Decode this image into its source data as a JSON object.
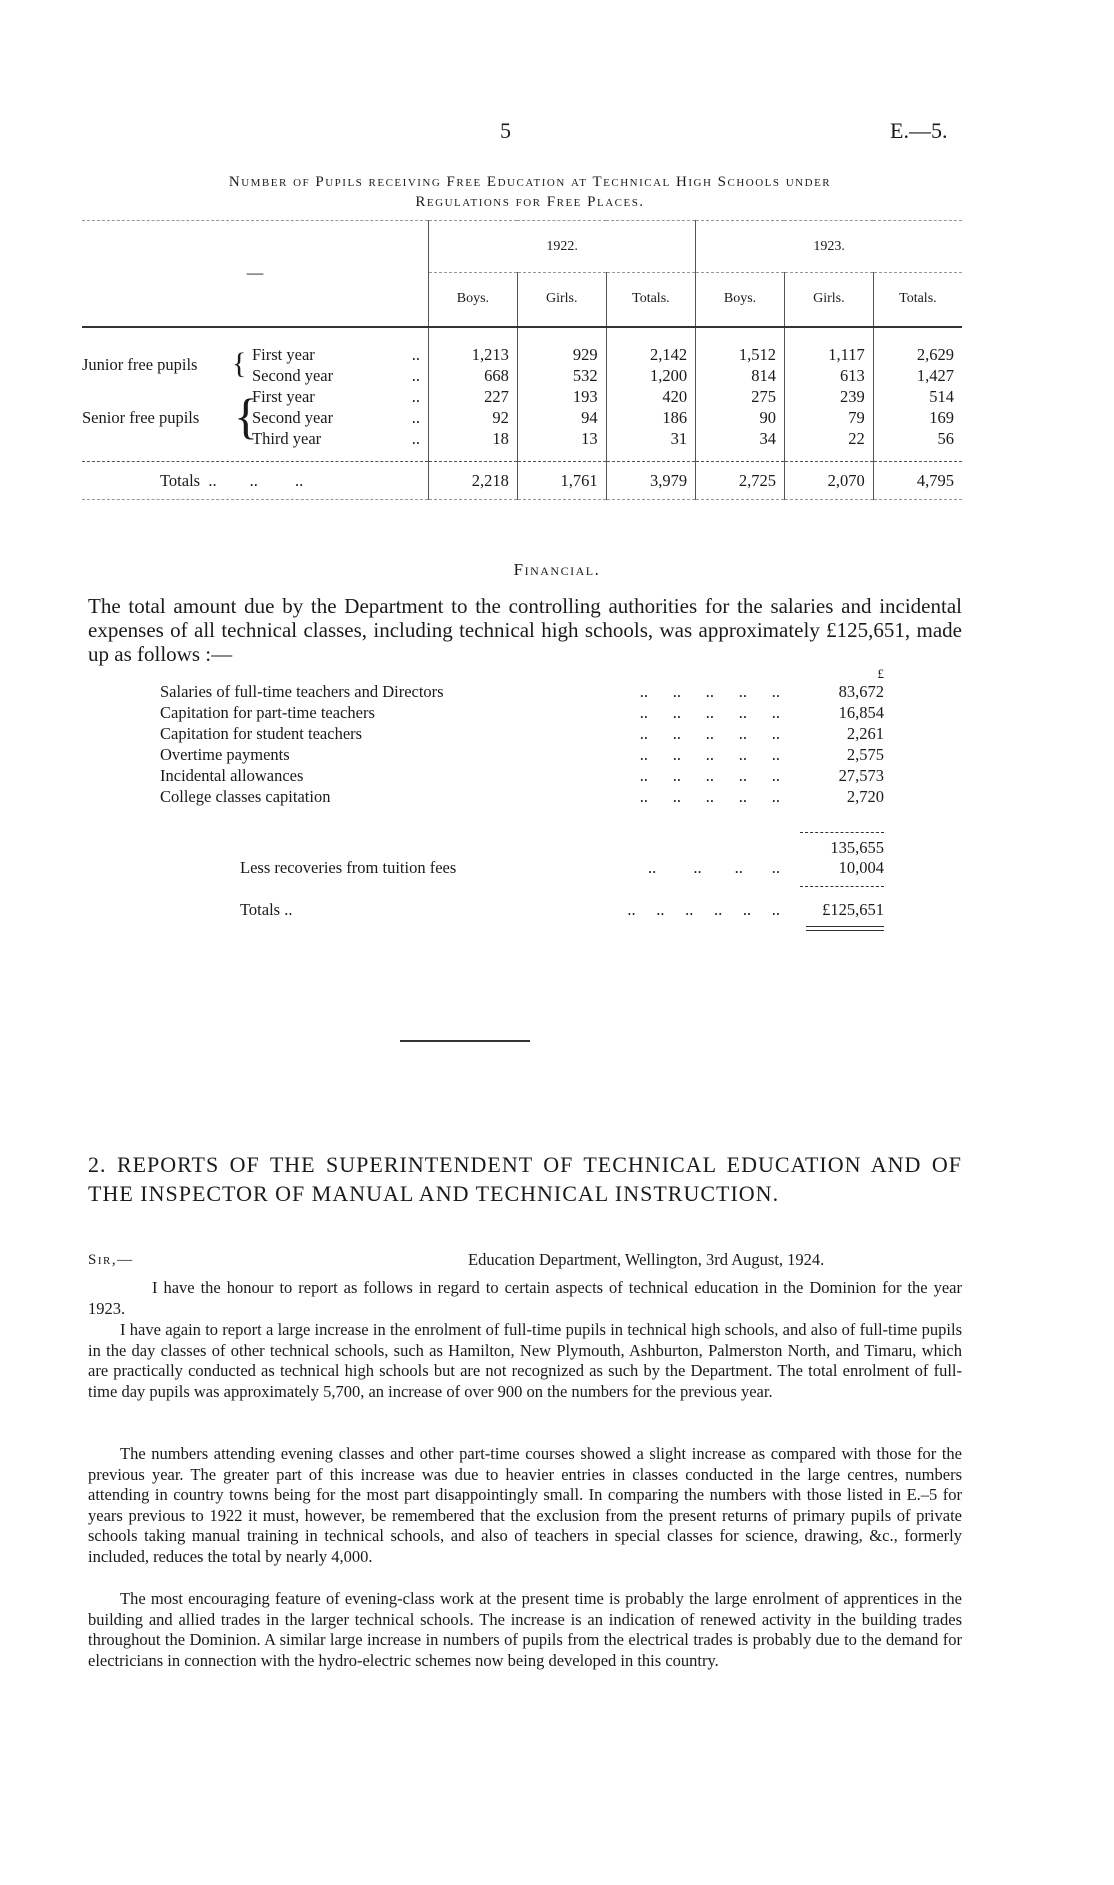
{
  "header": {
    "page_number": "5",
    "reference": "E.—5."
  },
  "table": {
    "title_line1": "Number of Pupils receiving Free Education at Technical High Schools under",
    "title_line2": "Regulations for Free Places.",
    "stub_header": "—",
    "years": [
      "1922.",
      "1923."
    ],
    "columns": [
      "Boys.",
      "Girls.",
      "Totals.",
      "Boys.",
      "Girls.",
      "Totals."
    ],
    "groups": [
      "Junior free pupils",
      "Senior free pupils"
    ],
    "rows": [
      {
        "label": "First year",
        "values": [
          "1,213",
          "929",
          "2,142",
          "1,512",
          "1,117",
          "2,629"
        ]
      },
      {
        "label": "Second year",
        "values": [
          "668",
          "532",
          "1,200",
          "814",
          "613",
          "1,427"
        ]
      },
      {
        "label": "First year",
        "values": [
          "227",
          "193",
          "420",
          "275",
          "239",
          "514"
        ]
      },
      {
        "label": "Second year",
        "values": [
          "92",
          "94",
          "186",
          "90",
          "79",
          "169"
        ]
      },
      {
        "label": "Third year",
        "values": [
          "18",
          "13",
          "31",
          "34",
          "22",
          "56"
        ]
      }
    ],
    "totals_label": "Totals",
    "totals": [
      "2,218",
      "1,761",
      "3,979",
      "2,725",
      "2,070",
      "4,795"
    ]
  },
  "financial": {
    "heading": "Financial.",
    "intro": "The total amount due by the Department to the controlling authorities for the salaries and incidental expenses of all technical classes, including technical high schools, was approximately £125,651, made up as follows :—",
    "currency": "£",
    "items": [
      {
        "label": "Salaries of full-time teachers and Directors",
        "amount": "83,672"
      },
      {
        "label": "Capitation for part-time teachers",
        "amount": "16,854"
      },
      {
        "label": "Capitation for student teachers",
        "amount": "2,261"
      },
      {
        "label": "Overtime payments",
        "amount": "2,575"
      },
      {
        "label": "Incidental allowances",
        "amount": "27,573"
      },
      {
        "label": "College classes capitation",
        "amount": "2,720"
      }
    ],
    "subtotal": "135,655",
    "less_label": "Less recoveries from tuition fees",
    "less_amount": "10,004",
    "totals_label": "Totals",
    "total": "£125,651"
  },
  "report": {
    "heading": "2. REPORTS OF THE SUPERINTENDENT OF TECHNICAL EDUCATION AND OF THE INSPECTOR OF MANUAL AND TECHNICAL INSTRUCTION.",
    "salutation": "Sir,—",
    "address": "Education Department, Wellington, 3rd August, 1924.",
    "paragraphs": [
      "I have the honour to report as follows in regard to certain aspects of technical education in the Dominion for the year 1923.",
      "I have again to report a large increase in the enrolment of full-time pupils in technical high schools, and also of full-time pupils in the day classes of other technical schools, such as Hamilton, New Plymouth, Ashburton, Palmerston North, and Timaru, which are practically conducted as technical high schools but are not recognized as such by the Department. The total enrolment of full-time day pupils was approximately 5,700, an increase of over 900 on the numbers for the previous year.",
      "The numbers attending evening classes and other part-time courses showed a slight increase as compared with those for the previous year. The greater part of this increase was due to heavier entries in classes conducted in the large centres, numbers attending in country towns being for the most part disappointingly small. In comparing the numbers with those listed in E.–5 for years previous to 1922 it must, however, be remembered that the exclusion from the present returns of primary pupils of private schools taking manual training in technical schools, and also of teachers in special classes for science, drawing, &c., formerly included, reduces the total by nearly 4,000.",
      "The most encouraging feature of evening-class work at the present time is probably the large enrolment of apprentices in the building and allied trades in the larger technical schools. The increase is an indication of renewed activity in the building trades throughout the Dominion. A similar large increase in numbers of pupils from the electrical trades is probably due to the demand for electricians in connection with the hydro-electric schemes now being developed in this country."
    ]
  }
}
